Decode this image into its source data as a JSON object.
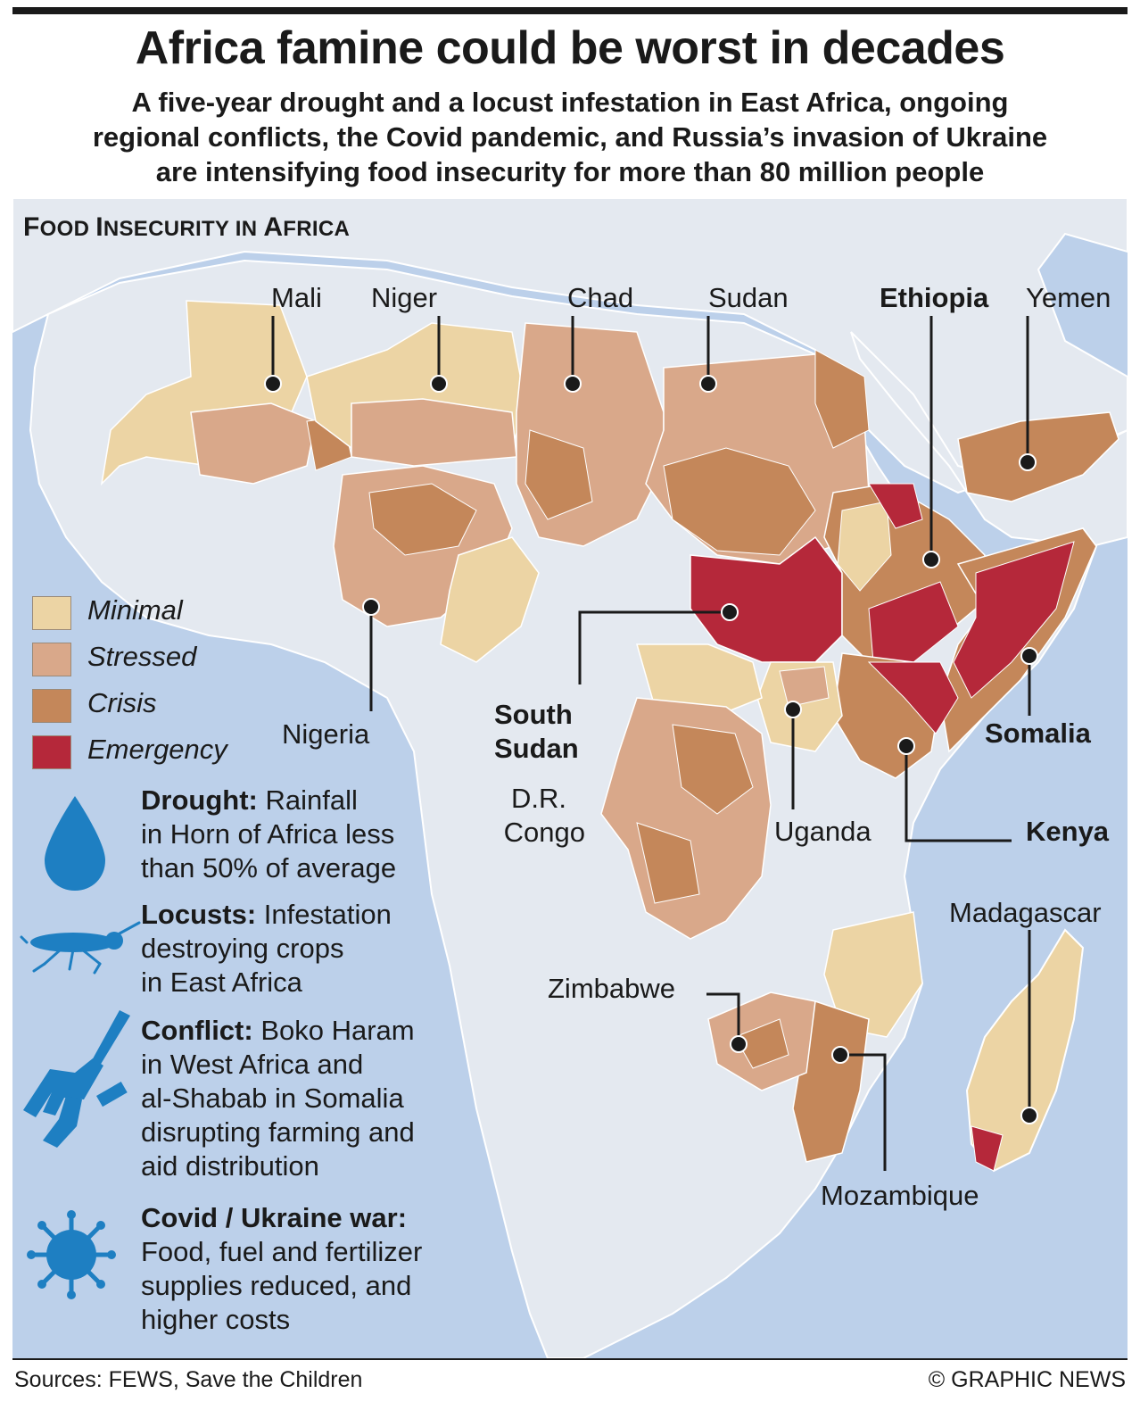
{
  "title": "Africa famine could be worst in decades",
  "subtitle_lines": [
    "A five-year drought and a locust infestation in East Africa, ongoing",
    "regional conflicts, the Covid pandemic, and Russia’s invasion of Ukraine",
    "are intensifying food insecurity for more than 80 million people"
  ],
  "section_title_parts": [
    "F",
    "OOD ",
    "I",
    "NSECURITY IN ",
    "A",
    "FRICA"
  ],
  "colors": {
    "ocean": "#bcd0ea",
    "land": "#e4e9f0",
    "minimal": "#ecd4a4",
    "stressed": "#d9a88a",
    "crisis": "#c4875a",
    "emergency": "#b5283a",
    "icon_blue": "#1e7fc2"
  },
  "legend": [
    {
      "label": "Minimal",
      "color_key": "minimal"
    },
    {
      "label": "Stressed",
      "color_key": "stressed"
    },
    {
      "label": "Crisis",
      "color_key": "crisis"
    },
    {
      "label": "Emergency",
      "color_key": "emergency"
    }
  ],
  "countries": {
    "mali": {
      "name": "Mali",
      "level": "stressed"
    },
    "niger": {
      "name": "Niger",
      "level": "stressed"
    },
    "chad": {
      "name": "Chad",
      "level": "stressed"
    },
    "sudan": {
      "name": "Sudan",
      "level": "crisis"
    },
    "ethiopia": {
      "name": "Ethiopia",
      "level": "emergency"
    },
    "yemen": {
      "name": "Yemen",
      "level": "crisis"
    },
    "nigeria": {
      "name": "Nigeria",
      "level": "stressed"
    },
    "south_sudan": {
      "name_lines": [
        "South",
        "Sudan"
      ],
      "level": "emergency"
    },
    "drc": {
      "name_lines": [
        "D.R.",
        "Congo"
      ],
      "level": "stressed"
    },
    "uganda": {
      "name": "Uganda",
      "level": "minimal"
    },
    "kenya": {
      "name": "Kenya",
      "level": "crisis"
    },
    "somalia": {
      "name": "Somalia",
      "level": "emergency"
    },
    "madagascar": {
      "name": "Madagascar",
      "level": "minimal"
    },
    "zimbabwe": {
      "name": "Zimbabwe",
      "level": "stressed"
    },
    "mozambique": {
      "name": "Mozambique",
      "level": "crisis"
    }
  },
  "factors": [
    {
      "icon": "water-drop-icon",
      "heading": "Drought:",
      "text_lines": [
        " Rainfall",
        "in Horn of Africa less",
        "than 50% of average"
      ]
    },
    {
      "icon": "locust-icon",
      "heading": "Locusts:",
      "text_lines": [
        " Infestation",
        "destroying crops",
        "in East Africa"
      ]
    },
    {
      "icon": "rifle-icon",
      "heading": "Conflict:",
      "text_lines": [
        " Boko Haram",
        "in West Africa and",
        "al-Shabab in Somalia",
        "disrupting farming and",
        "aid distribution"
      ]
    },
    {
      "icon": "virus-icon",
      "heading": "Covid / Ukraine war:",
      "text_lines": [
        "Food, fuel and fertilizer",
        "supplies reduced, and",
        "higher costs"
      ]
    }
  ],
  "footer": {
    "sources": "Sources: FEWS, Save the Children",
    "credit": "© GRAPHIC NEWS"
  }
}
